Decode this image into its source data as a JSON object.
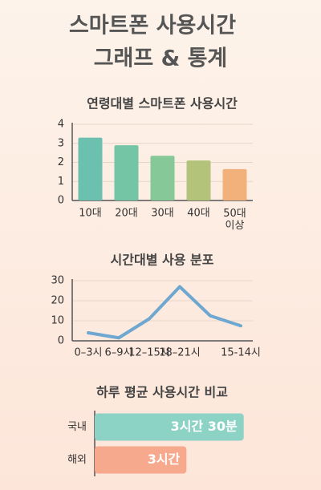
{
  "title_lines": [
    "스마트폰 사용시간",
    "그래프 & 통계"
  ],
  "chart_data": [
    {
      "type": "bar",
      "title": "연령대별 스마트폰 사용시간",
      "categories": [
        "10대",
        "20대",
        "30대",
        "40대",
        "50대 이상"
      ],
      "values": [
        3.3,
        2.9,
        2.35,
        2.1,
        1.65
      ],
      "colors": [
        "#6cc0b0",
        "#74c4a6",
        "#86c898",
        "#b3c47a",
        "#f2b07a"
      ],
      "ylim": [
        0,
        4
      ],
      "yticks": [
        0,
        1,
        2,
        3,
        4
      ],
      "grid": true
    },
    {
      "type": "line",
      "title": "시간대별 사용 분포",
      "categories": [
        "0–3시",
        "6–9시",
        "12–15시",
        "18–21시",
        null,
        "15-14시"
      ],
      "values": [
        4,
        1.5,
        11,
        27,
        12.5,
        7.5
      ],
      "color": "#6ea8d0",
      "ylim": [
        0,
        30
      ],
      "yticks": [
        0,
        10,
        20,
        30
      ],
      "grid": true
    },
    {
      "type": "hbar",
      "title": "하루 평균 사용시간 비교",
      "categories": [
        "국내",
        "해외"
      ],
      "values": [
        3.5,
        3
      ],
      "value_labels": [
        "3시간 30분",
        "3시간"
      ],
      "colors": [
        "#8dd3c5",
        "#f7a98e"
      ],
      "xlim": [
        2.2,
        3.6
      ]
    }
  ]
}
